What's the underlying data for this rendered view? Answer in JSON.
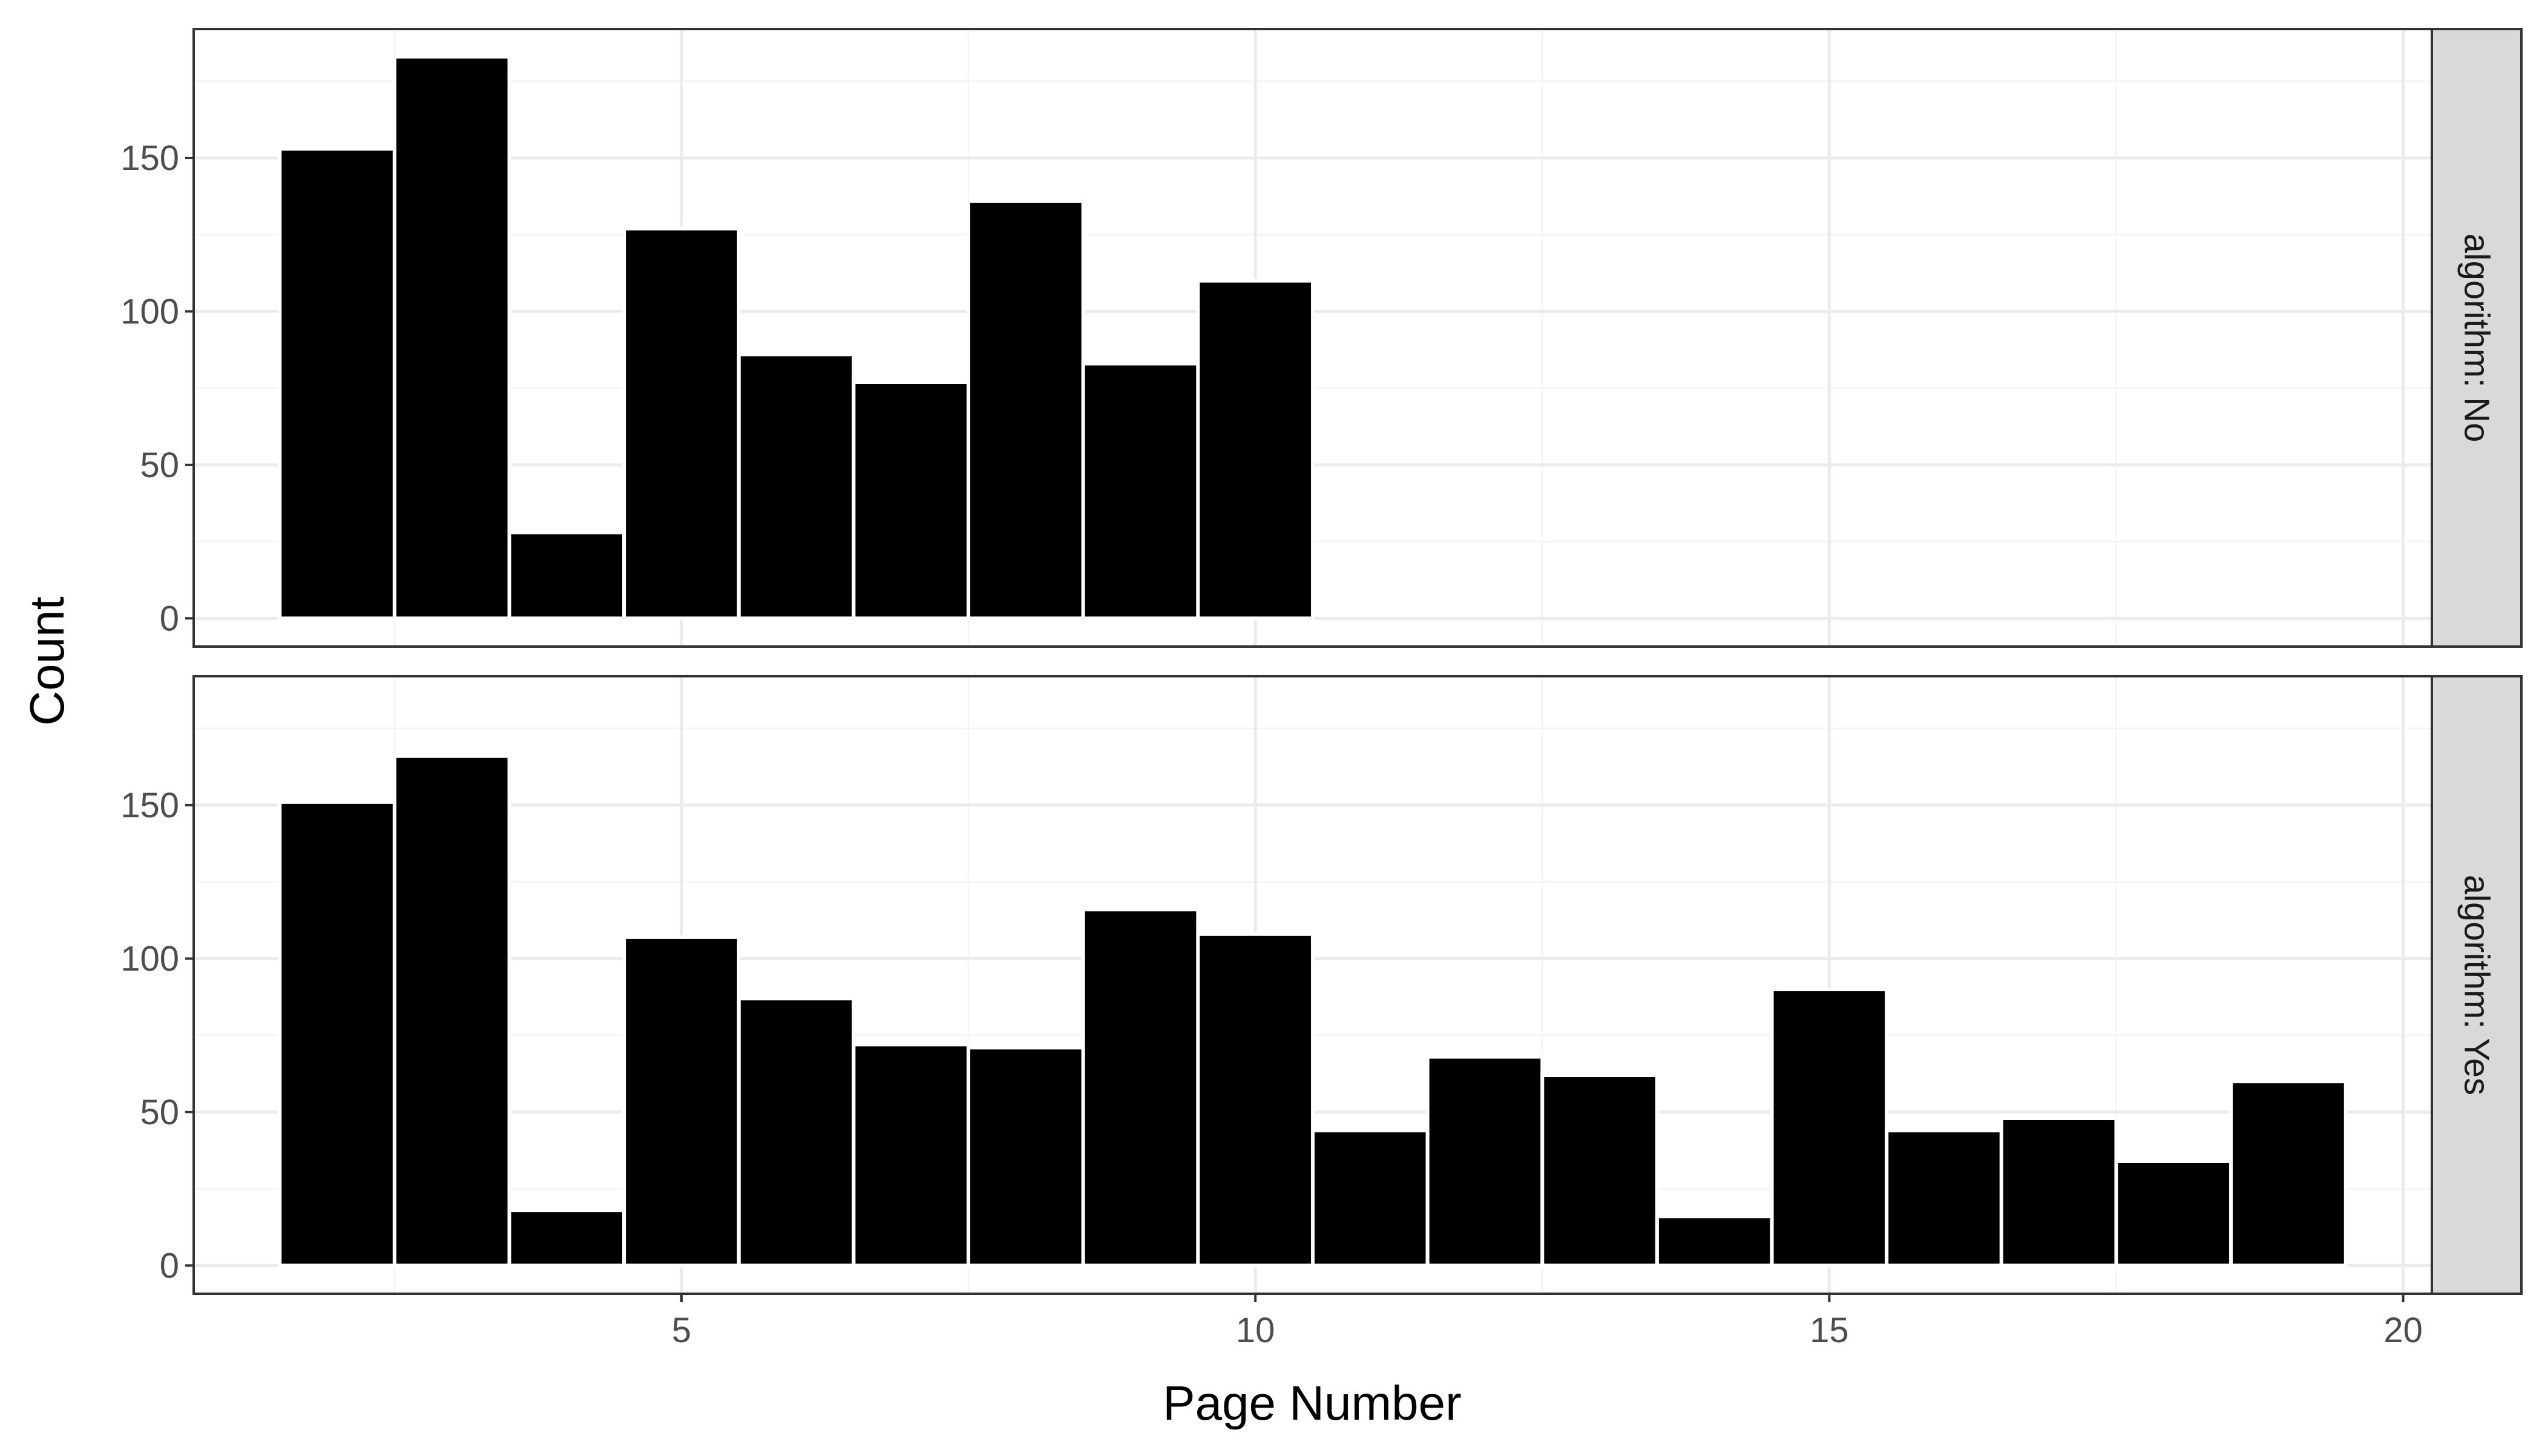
{
  "chart_data": {
    "type": "bar",
    "xlabel": "Page Number",
    "ylabel": "Count",
    "xlim": [
      0.75,
      20.25
    ],
    "ylim": [
      -9.2,
      192
    ],
    "x_ticks": [
      5,
      10,
      15,
      20
    ],
    "y_ticks": [
      0,
      50,
      100,
      150
    ],
    "grid": true,
    "colors": {
      "bar": "#000000",
      "grid_major": "#ebebeb",
      "grid_minor": "#f5f5f5",
      "strip": "#d9d9d9"
    },
    "panels": [
      {
        "strip": "algorithm: No",
        "x": [
          2,
          3,
          4,
          5,
          6,
          7,
          8,
          9,
          10
        ],
        "values": [
          153,
          183,
          28,
          127,
          86,
          77,
          136,
          83,
          110
        ]
      },
      {
        "strip": "algorithm: Yes",
        "x": [
          2,
          3,
          4,
          5,
          6,
          7,
          8,
          9,
          10,
          11,
          12,
          13,
          14,
          15,
          16,
          17,
          18,
          19
        ],
        "values": [
          151,
          166,
          18,
          107,
          87,
          72,
          71,
          116,
          108,
          44,
          68,
          62,
          16,
          90,
          44,
          48,
          34,
          60
        ]
      }
    ]
  }
}
